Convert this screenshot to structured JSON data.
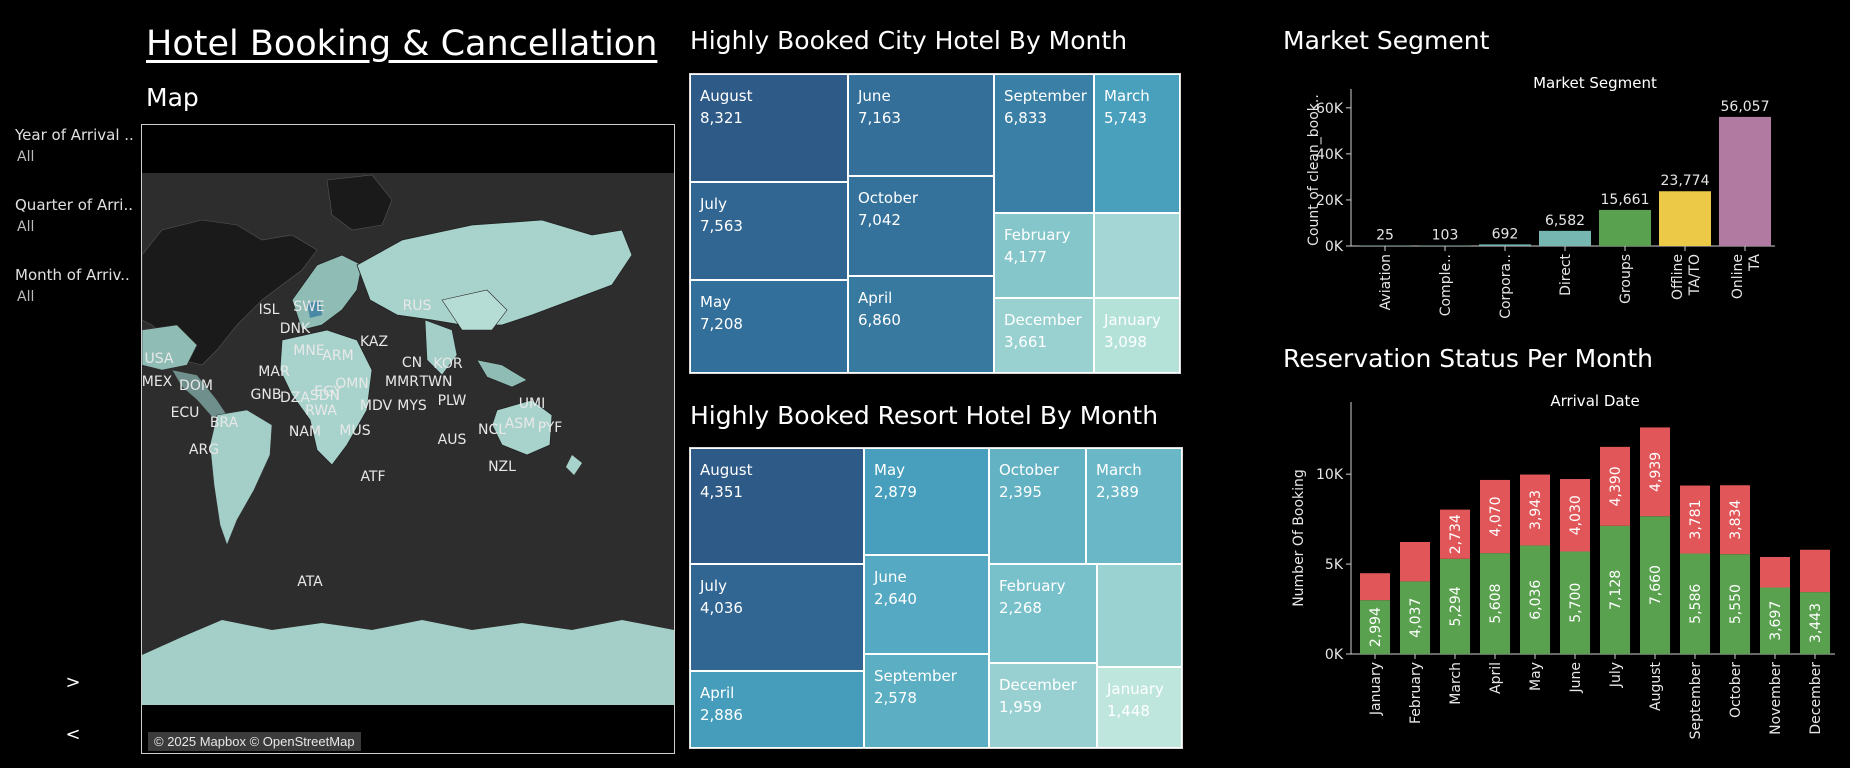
{
  "header": {
    "title": "Hotel Booking & Cancellation"
  },
  "map": {
    "title": "Map",
    "credit": "© 2025 Mapbox © OpenStreetMap",
    "country_labels": [
      "ISL",
      "SWE",
      "RUS",
      "DNK",
      "USA",
      "MNE",
      "ARM",
      "KAZ",
      "MAR",
      "CN",
      "KOR",
      "MEX",
      "DOM",
      "GNB",
      "DZA",
      "EGY",
      "OMN",
      "MMR",
      "TWN",
      "ECU",
      "BRA",
      "SDN",
      "MDV",
      "MYS",
      "PLW",
      "UMI",
      "RWA",
      "NAM",
      "MUS",
      "AUS",
      "NCL",
      "ASM",
      "PYF",
      "ARG",
      "NZL",
      "ATF",
      "ATA"
    ]
  },
  "filters": [
    {
      "label": "Year of Arrival ..",
      "value": "All"
    },
    {
      "label": "Quarter of Arri..",
      "value": "All"
    },
    {
      "label": "Month of Arriv..",
      "value": "All"
    }
  ],
  "nav": {
    "next": ">",
    "prev": "<"
  },
  "city_treemap": {
    "title": "Highly Booked City Hotel By Month",
    "tiles": [
      {
        "month": "August",
        "value": "8,321",
        "color": "#2e5a87"
      },
      {
        "month": "June",
        "value": "7,163",
        "color": "#336f99"
      },
      {
        "month": "September",
        "value": "6,833",
        "color": "#3a7fa6"
      },
      {
        "month": "March",
        "value": "5,743",
        "color": "#48a0bc"
      },
      {
        "month": "July",
        "value": "7,563",
        "color": "#316592"
      },
      {
        "month": "October",
        "value": "7,042",
        "color": "#34729b"
      },
      {
        "month": "February",
        "value": "4,177",
        "color": "#85c6cb"
      },
      {
        "month": "",
        "value": "",
        "color": "#a3d6d4"
      },
      {
        "month": "May",
        "value": "7,208",
        "color": "#336f9b"
      },
      {
        "month": "April",
        "value": "6,860",
        "color": "#387a9f"
      },
      {
        "month": "December",
        "value": "3,661",
        "color": "#99d1d1"
      },
      {
        "month": "January",
        "value": "3,098",
        "color": "#b4e2d8"
      }
    ]
  },
  "resort_treemap": {
    "title": "Highly Booked Resort Hotel By Month",
    "tiles": [
      {
        "month": "August",
        "value": "4,351",
        "color": "#2e5a87"
      },
      {
        "month": "May",
        "value": "2,879",
        "color": "#479fbd"
      },
      {
        "month": "October",
        "value": "2,395",
        "color": "#62b2c4"
      },
      {
        "month": "March",
        "value": "2,389",
        "color": "#6ab8c7"
      },
      {
        "month": "July",
        "value": "4,036",
        "color": "#316592"
      },
      {
        "month": "June",
        "value": "2,640",
        "color": "#55a9c2"
      },
      {
        "month": "February",
        "value": "2,268",
        "color": "#79c1ca"
      },
      {
        "month": "",
        "value": "",
        "color": "#9ad1d1"
      },
      {
        "month": "April",
        "value": "2,886",
        "color": "#459dbb"
      },
      {
        "month": "September",
        "value": "2,578",
        "color": "#5cafc3"
      },
      {
        "month": "December",
        "value": "1,959",
        "color": "#98d0d1"
      },
      {
        "month": "January",
        "value": "1,448",
        "color": "#bfe6dc"
      }
    ]
  },
  "chart_data": [
    {
      "type": "bar",
      "title": "Market Segment",
      "section_title": "Market Segment",
      "ylabel": "Count of clean_book..",
      "xlabel": "",
      "categories": [
        "Aviation",
        "Comple..",
        "Corpora..",
        "Direct",
        "Groups",
        "Offline TA/TO",
        "Online TA"
      ],
      "values": [
        25,
        103,
        692,
        6582,
        15661,
        23774,
        56057
      ],
      "value_labels": [
        "25",
        "103",
        "692",
        "6,582",
        "15,661",
        "23,774",
        "56,057"
      ],
      "colors": [
        "#76b7b2",
        "#76b7b2",
        "#76b7b2",
        "#76b7b2",
        "#59a14f",
        "#edc948",
        "#b07aa1"
      ],
      "ylim": [
        0,
        66000
      ],
      "yticks": [
        0,
        20000,
        40000,
        60000
      ],
      "ytick_labels": [
        "0K",
        "20K",
        "40K",
        "60K"
      ],
      "grid": false
    },
    {
      "type": "bar",
      "stacked": true,
      "title": "Arrival Date",
      "section_title": "Reservation Status Per Month",
      "ylabel": "Number Of Booking",
      "xlabel": "",
      "categories": [
        "January",
        "February",
        "March",
        "April",
        "May",
        "June",
        "July",
        "August",
        "September",
        "October",
        "November",
        "December"
      ],
      "series": [
        {
          "color": "#59a14f",
          "values": [
            2994,
            4037,
            5294,
            5608,
            6036,
            5700,
            7128,
            7660,
            5586,
            5550,
            3697,
            3443
          ],
          "labels": [
            "2,994",
            "4,037",
            "5,294",
            "5,608",
            "6,036",
            "5,700",
            "7,128",
            "7,660",
            "5,586",
            "5,550",
            "3,697",
            "3,443"
          ]
        },
        {
          "color": "#e15759",
          "values": [
            1499,
            2192,
            2734,
            4070,
            3943,
            4030,
            4390,
            4939,
            3781,
            3834,
            1697,
            2355
          ],
          "labels": [
            "",
            "",
            "2,734",
            "4,070",
            "3,943",
            "4,030",
            "4,390",
            "4,939",
            "3,781",
            "3,834",
            "",
            ""
          ]
        }
      ],
      "ylim": [
        0,
        12900
      ],
      "yticks": [
        0,
        5000,
        10000
      ],
      "ytick_labels": [
        "0K",
        "5K",
        "10K"
      ],
      "grid": false
    }
  ]
}
